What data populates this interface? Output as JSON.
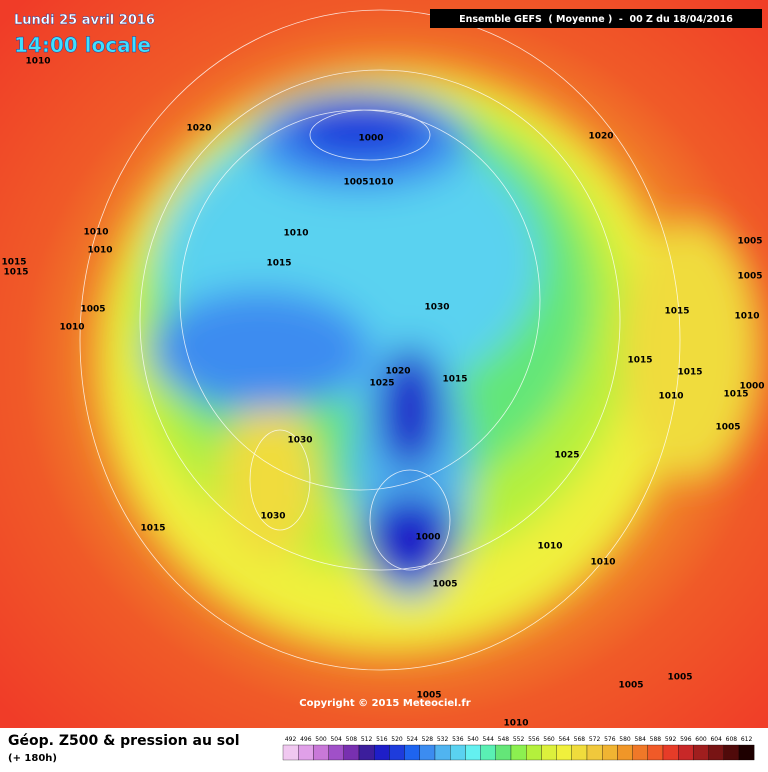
{
  "header": {
    "date": "Lundi 25 avril 2016",
    "time": "14:00 locale",
    "run": "Ensemble GEFS  ( Moyenne )  -  00 Z du 18/04/2016"
  },
  "map": {
    "pressure_labels": [
      1010,
      1020,
      1000,
      1005,
      1010,
      1020,
      1010,
      1010,
      1015,
      1015,
      1010,
      1015,
      1005,
      1005,
      1005,
      1010,
      1030,
      1015,
      1010,
      1020,
      1015,
      1025,
      1015,
      1015,
      1000,
      1010,
      1015,
      1005,
      1030,
      1025,
      1030,
      1015,
      1000,
      1010,
      1010,
      1005,
      1005,
      1005,
      1005,
      1010
    ],
    "copyright": "Copyright © 2015 Meteociel.fr"
  },
  "footer": {
    "title": "Géop. Z500 & pression au sol",
    "lead": "(+ 180h)",
    "scale": {
      "values": [
        492,
        496,
        500,
        504,
        508,
        512,
        516,
        520,
        524,
        528,
        532,
        536,
        540,
        544,
        548,
        552,
        556,
        560,
        564,
        568,
        572,
        576,
        580,
        584,
        588,
        592,
        596,
        600,
        604,
        608,
        612
      ],
      "colors": [
        "#f0c8f0",
        "#e0a0e8",
        "#c878d8",
        "#a050c8",
        "#7830b0",
        "#3c1e9c",
        "#1e1ec8",
        "#1e3cdc",
        "#1e64f0",
        "#3c8cf0",
        "#50b4f0",
        "#5ad2f0",
        "#64f0f0",
        "#5af0b4",
        "#64e678",
        "#8cf050",
        "#b4f03c",
        "#dcf03c",
        "#f0f03c",
        "#f0dc3c",
        "#f0c83c",
        "#f0b432",
        "#f09628",
        "#f07828",
        "#f05a28",
        "#e63c28",
        "#c82828",
        "#a01e1e",
        "#781414",
        "#500a0a",
        "#1e0000"
      ]
    }
  }
}
